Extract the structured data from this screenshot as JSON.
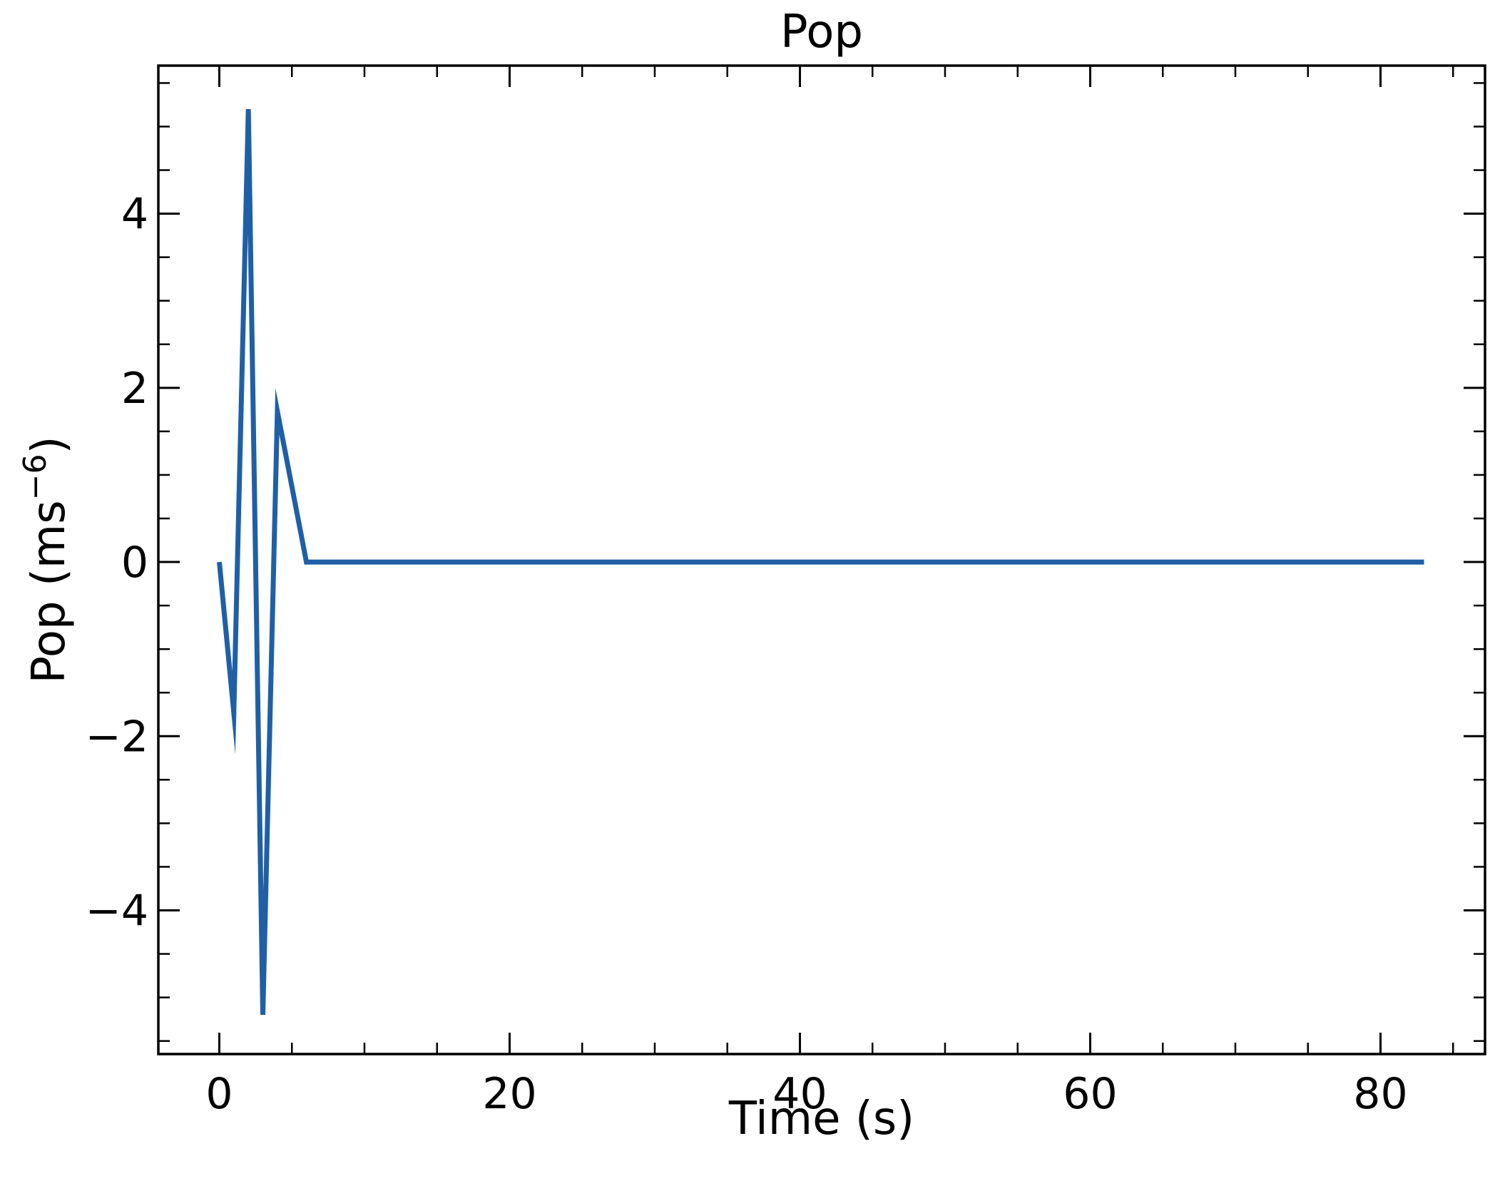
{
  "chart_data": {
    "type": "line",
    "title": "Pop",
    "xlabel": "Time (s)",
    "ylabel_base": "Pop (ms",
    "ylabel_sup": "−6",
    "ylabel_close": ")",
    "xlim": [
      -4.2,
      87.2
    ],
    "ylim": [
      -5.65,
      5.7
    ],
    "x_ticks": [
      0,
      20,
      40,
      60,
      80
    ],
    "x_tick_labels": [
      "0",
      "20",
      "40",
      "60",
      "80"
    ],
    "y_ticks": [
      -4,
      -2,
      0,
      2,
      4
    ],
    "y_tick_labels": [
      "−4",
      "−2",
      "0",
      "2",
      "4"
    ],
    "x_minor_step": 5,
    "y_minor_step": 0.5,
    "tick_direction": "in",
    "grid": false,
    "legend": "none",
    "series": [
      {
        "color": "#1f5fa6",
        "x": [
          0,
          1,
          2,
          3,
          4,
          6,
          7,
          10,
          20,
          30,
          40,
          50,
          60,
          70,
          80,
          83
        ],
        "y": [
          0.0,
          -1.73,
          5.2,
          -5.2,
          1.73,
          0.0,
          0.0,
          0.0,
          0.0,
          0.0,
          0.0,
          0.0,
          0.0,
          0.0,
          0.0,
          0.0
        ]
      }
    ]
  }
}
